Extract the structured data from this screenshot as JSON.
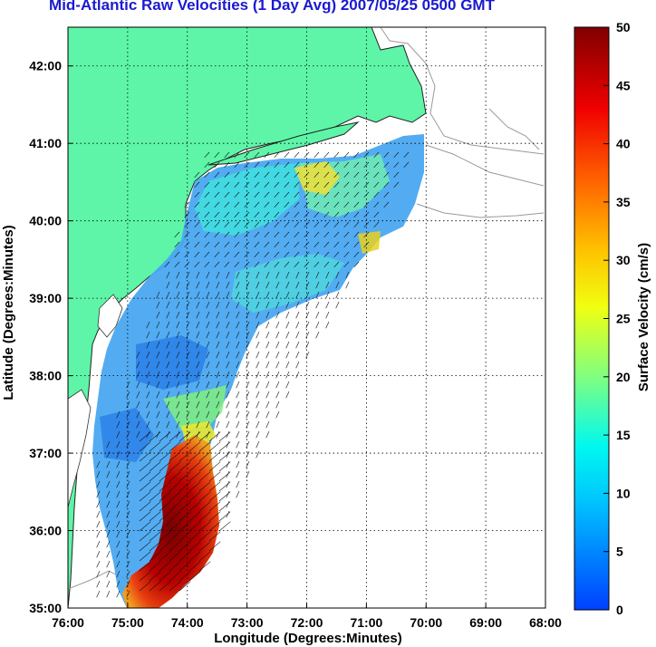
{
  "title": "Mid-Atlantic Raw Velocities (1 Day Avg) 2007/05/25 0500 GMT",
  "x_axis": {
    "label": "Longitude (Degrees:Minutes)",
    "ticks": [
      "76:00",
      "75:00",
      "74:00",
      "73:00",
      "72:00",
      "71:00",
      "70:00",
      "69:00",
      "68:00"
    ]
  },
  "y_axis": {
    "label": "Latitude (Degrees:Minutes)",
    "ticks": [
      "42:00",
      "41:00",
      "40:00",
      "39:00",
      "38:00",
      "37:00",
      "36:00",
      "35:00"
    ]
  },
  "colorbar": {
    "label": "Surface Velocity (cm/s)",
    "ticks": [
      "50",
      "45",
      "40",
      "35",
      "30",
      "25",
      "20",
      "15",
      "10",
      "5",
      "0"
    ],
    "min": 0,
    "max": 50
  },
  "colors": {
    "land": "#5ef5a8",
    "title": "#1a1ad0",
    "contour": "#9a9a9a",
    "vector": "#111111"
  },
  "map": {
    "lon_range": [
      -76,
      -68
    ],
    "lat_range": [
      35,
      42.5
    ],
    "grid": "dotted"
  }
}
